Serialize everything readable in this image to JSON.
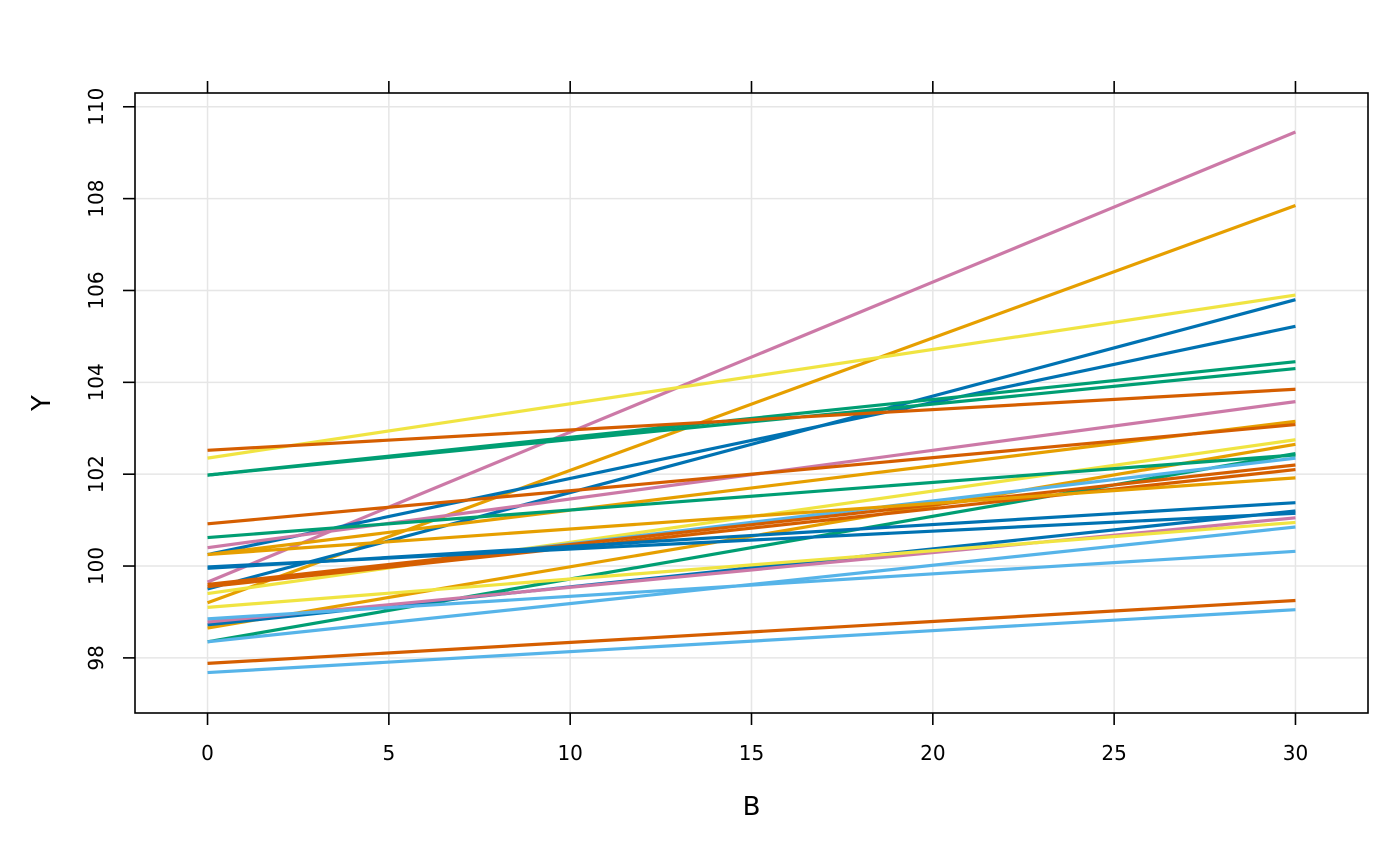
{
  "chart_data": {
    "type": "line",
    "xlabel": "B",
    "ylabel": "Y",
    "xlim": [
      -2,
      32
    ],
    "ylim": [
      96.8,
      110.3
    ],
    "x_ticks": [
      0,
      5,
      10,
      15,
      20,
      25,
      30
    ],
    "y_ticks": [
      98,
      100,
      102,
      104,
      106,
      108,
      110
    ],
    "grid": true,
    "series": [
      {
        "color": "#CC79A7",
        "x": [
          0,
          30
        ],
        "y": [
          99.65,
          109.45
        ]
      },
      {
        "color": "#E69F00",
        "x": [
          0,
          30
        ],
        "y": [
          99.2,
          107.85
        ]
      },
      {
        "color": "#F0E442",
        "x": [
          0,
          30
        ],
        "y": [
          102.35,
          105.9
        ]
      },
      {
        "color": "#0072B2",
        "x": [
          0,
          30
        ],
        "y": [
          99.5,
          105.8
        ]
      },
      {
        "color": "#0072B2",
        "x": [
          0,
          30
        ],
        "y": [
          100.25,
          105.22
        ]
      },
      {
        "color": "#009E73",
        "x": [
          0,
          30
        ],
        "y": [
          101.98,
          104.45
        ]
      },
      {
        "color": "#009E73",
        "x": [
          0,
          30
        ],
        "y": [
          101.98,
          104.3
        ]
      },
      {
        "color": "#D55E00",
        "x": [
          0,
          30
        ],
        "y": [
          102.52,
          103.85
        ]
      },
      {
        "color": "#CC79A7",
        "x": [
          0,
          30
        ],
        "y": [
          100.4,
          103.58
        ]
      },
      {
        "color": "#E69F00",
        "x": [
          0,
          30
        ],
        "y": [
          100.25,
          103.15
        ]
      },
      {
        "color": "#D55E00",
        "x": [
          0,
          30
        ],
        "y": [
          100.92,
          103.08
        ]
      },
      {
        "color": "#F0E442",
        "x": [
          0,
          30
        ],
        "y": [
          99.4,
          102.75
        ]
      },
      {
        "color": "#E69F00",
        "x": [
          0,
          30
        ],
        "y": [
          98.65,
          102.65
        ]
      },
      {
        "color": "#009E73",
        "x": [
          0,
          30
        ],
        "y": [
          98.35,
          102.45
        ]
      },
      {
        "color": "#009E73",
        "x": [
          0,
          30
        ],
        "y": [
          100.62,
          102.42
        ]
      },
      {
        "color": "#56B4E9",
        "x": [
          0,
          30
        ],
        "y": [
          99.55,
          102.35
        ]
      },
      {
        "color": "#D55E00",
        "x": [
          0,
          30
        ],
        "y": [
          99.6,
          102.2
        ]
      },
      {
        "color": "#D55E00",
        "x": [
          0,
          30
        ],
        "y": [
          99.55,
          102.1
        ]
      },
      {
        "color": "#E69F00",
        "x": [
          0,
          30
        ],
        "y": [
          100.25,
          101.92
        ]
      },
      {
        "color": "#0072B2",
        "x": [
          0,
          30
        ],
        "y": [
          99.95,
          101.38
        ]
      },
      {
        "color": "#0072B2",
        "x": [
          0,
          30
        ],
        "y": [
          98.72,
          101.2
        ]
      },
      {
        "color": "#0072B2",
        "x": [
          0,
          30
        ],
        "y": [
          99.98,
          101.15
        ]
      },
      {
        "color": "#CC79A7",
        "x": [
          0,
          30
        ],
        "y": [
          98.78,
          101.05
        ]
      },
      {
        "color": "#F0E442",
        "x": [
          0,
          30
        ],
        "y": [
          99.1,
          100.95
        ]
      },
      {
        "color": "#56B4E9",
        "x": [
          0,
          30
        ],
        "y": [
          98.35,
          100.85
        ]
      },
      {
        "color": "#56B4E9",
        "x": [
          0,
          30
        ],
        "y": [
          98.85,
          100.32
        ]
      },
      {
        "color": "#D55E00",
        "x": [
          0,
          30
        ],
        "y": [
          97.88,
          99.25
        ]
      },
      {
        "color": "#56B4E9",
        "x": [
          0,
          30
        ],
        "y": [
          97.68,
          99.05
        ]
      }
    ]
  }
}
